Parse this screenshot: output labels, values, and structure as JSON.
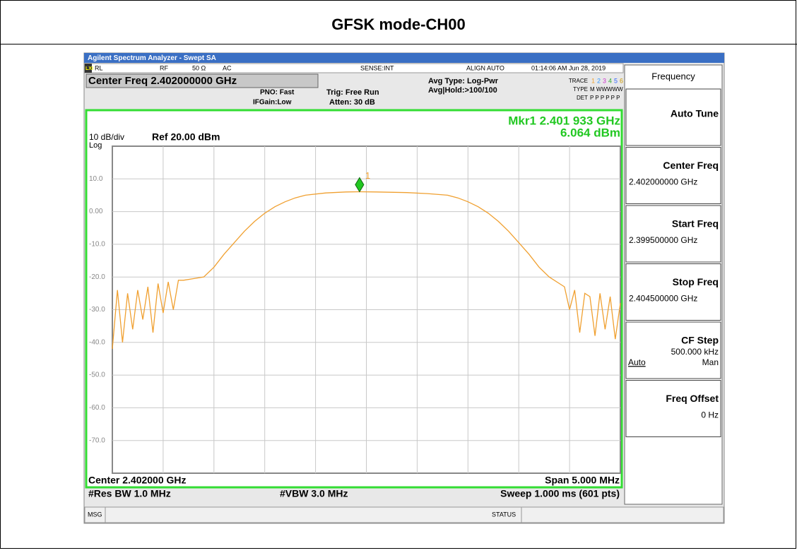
{
  "document_title": "GFSK mode-CH00",
  "window_title": "Agilent Spectrum Analyzer - Swept SA",
  "status_bar": {
    "lxi": "LXI",
    "rl": "RL",
    "rf": "RF",
    "impedance": "50 Ω",
    "coupling": "AC",
    "sense": "SENSE:INT",
    "align": "ALIGN AUTO",
    "datetime": "01:14:06 AM Jun 28, 2019"
  },
  "settings": {
    "center_freq": "Center Freq 2.402000000 GHz",
    "pno": "PNO: Fast",
    "ifgain": "IFGain:Low",
    "trig": "Trig: Free Run",
    "atten": "Atten: 30 dB",
    "avg_type": "Avg Type: Log-Pwr",
    "avg_hold": "Avg|Hold:>100/100",
    "trace_label": "TRACE",
    "trace_nums": [
      "1",
      "2",
      "3",
      "4",
      "5",
      "6"
    ],
    "type_label": "TYPE",
    "type_value": "M WWWWW",
    "det_label": "DET",
    "det_value": "P P P P P P"
  },
  "chart_data": {
    "type": "line",
    "scale": "10 dB/div",
    "scale_type": "Log",
    "ref": "Ref 20.00 dBm",
    "marker_readout": [
      "Mkr1 2.401 933 GHz",
      "6.064 dBm"
    ],
    "marker": {
      "label": "1",
      "x": 2.401933,
      "value": 6.064,
      "color": "#22c822"
    },
    "color": "#f0a030",
    "x": [
      2.3995,
      2.39955,
      2.3996,
      2.39965,
      2.3997,
      2.39975,
      2.3998,
      2.39985,
      2.3999,
      2.39995,
      2.4,
      2.40005,
      2.4001,
      2.40015,
      2.4002,
      2.4003,
      2.4004,
      2.4005,
      2.4006,
      2.4007,
      2.4008,
      2.4009,
      2.401,
      2.4011,
      2.4012,
      2.4013,
      2.4014,
      2.4016,
      2.4018,
      2.401933,
      2.4021,
      2.4024,
      2.4026,
      2.4028,
      2.4029,
      2.403,
      2.4031,
      2.4032,
      2.4033,
      2.4034,
      2.4035,
      2.4036,
      2.4037,
      2.4038,
      2.4039,
      2.40395,
      2.404,
      2.40405,
      2.4041,
      2.40415,
      2.4042,
      2.40425,
      2.4043,
      2.40435,
      2.4044,
      2.40445,
      2.4045
    ],
    "values": [
      -42,
      -24,
      -40,
      -25,
      -36,
      -24,
      -33,
      -23,
      -37,
      -22,
      -31,
      -21.5,
      -30,
      -21,
      -21,
      -20.5,
      -20,
      -17,
      -13,
      -9.5,
      -6,
      -3,
      -0.5,
      1.5,
      3,
      4.2,
      5,
      5.7,
      6,
      6.064,
      6,
      5.8,
      5.5,
      5,
      4.2,
      3,
      1.5,
      -0.5,
      -3,
      -6,
      -9.5,
      -13,
      -17,
      -20,
      -22,
      -23,
      -30,
      -24,
      -37,
      -25,
      -26,
      -38,
      -25,
      -36,
      -26,
      -39,
      -28
    ],
    "xlim": [
      2.3995,
      2.4045
    ],
    "ylim": [
      -80,
      20
    ],
    "xticks": [
      2.4,
      2.4005,
      2.401,
      2.4015,
      2.402,
      2.4025,
      2.403,
      2.4035,
      2.404
    ],
    "yticks": [
      {
        "value": 10,
        "label": "10.0"
      },
      {
        "value": 0,
        "label": "0.00"
      },
      {
        "value": -10,
        "label": "-10.0"
      },
      {
        "value": -20,
        "label": "-20.0"
      },
      {
        "value": -30,
        "label": "-30.0"
      },
      {
        "value": -40,
        "label": "-40.0"
      },
      {
        "value": -50,
        "label": "-50.0"
      },
      {
        "value": -60,
        "label": "-60.0"
      },
      {
        "value": -70,
        "label": "-70.0"
      }
    ],
    "grid": true,
    "footer": {
      "center": "Center 2.402000 GHz",
      "span": "Span 5.000 MHz",
      "rbw": "#Res BW 1.0 MHz",
      "vbw": "#VBW 3.0 MHz",
      "sweep": "Sweep  1.000 ms (601 pts)"
    }
  },
  "softkeys": {
    "menu": "Frequency",
    "keys": [
      {
        "label": "Auto Tune"
      },
      {
        "label": "Center Freq",
        "value": "2.402000000 GHz"
      },
      {
        "label": "Start Freq",
        "value": "2.399500000 GHz"
      },
      {
        "label": "Stop Freq",
        "value": "2.404500000 GHz"
      },
      {
        "label": "CF Step",
        "value": "500.000 kHz",
        "options": [
          "Auto",
          "Man"
        ]
      },
      {
        "label": "Freq Offset",
        "value": "0 Hz"
      }
    ]
  },
  "message_bar": {
    "msg": "MSG",
    "status": "STATUS"
  }
}
